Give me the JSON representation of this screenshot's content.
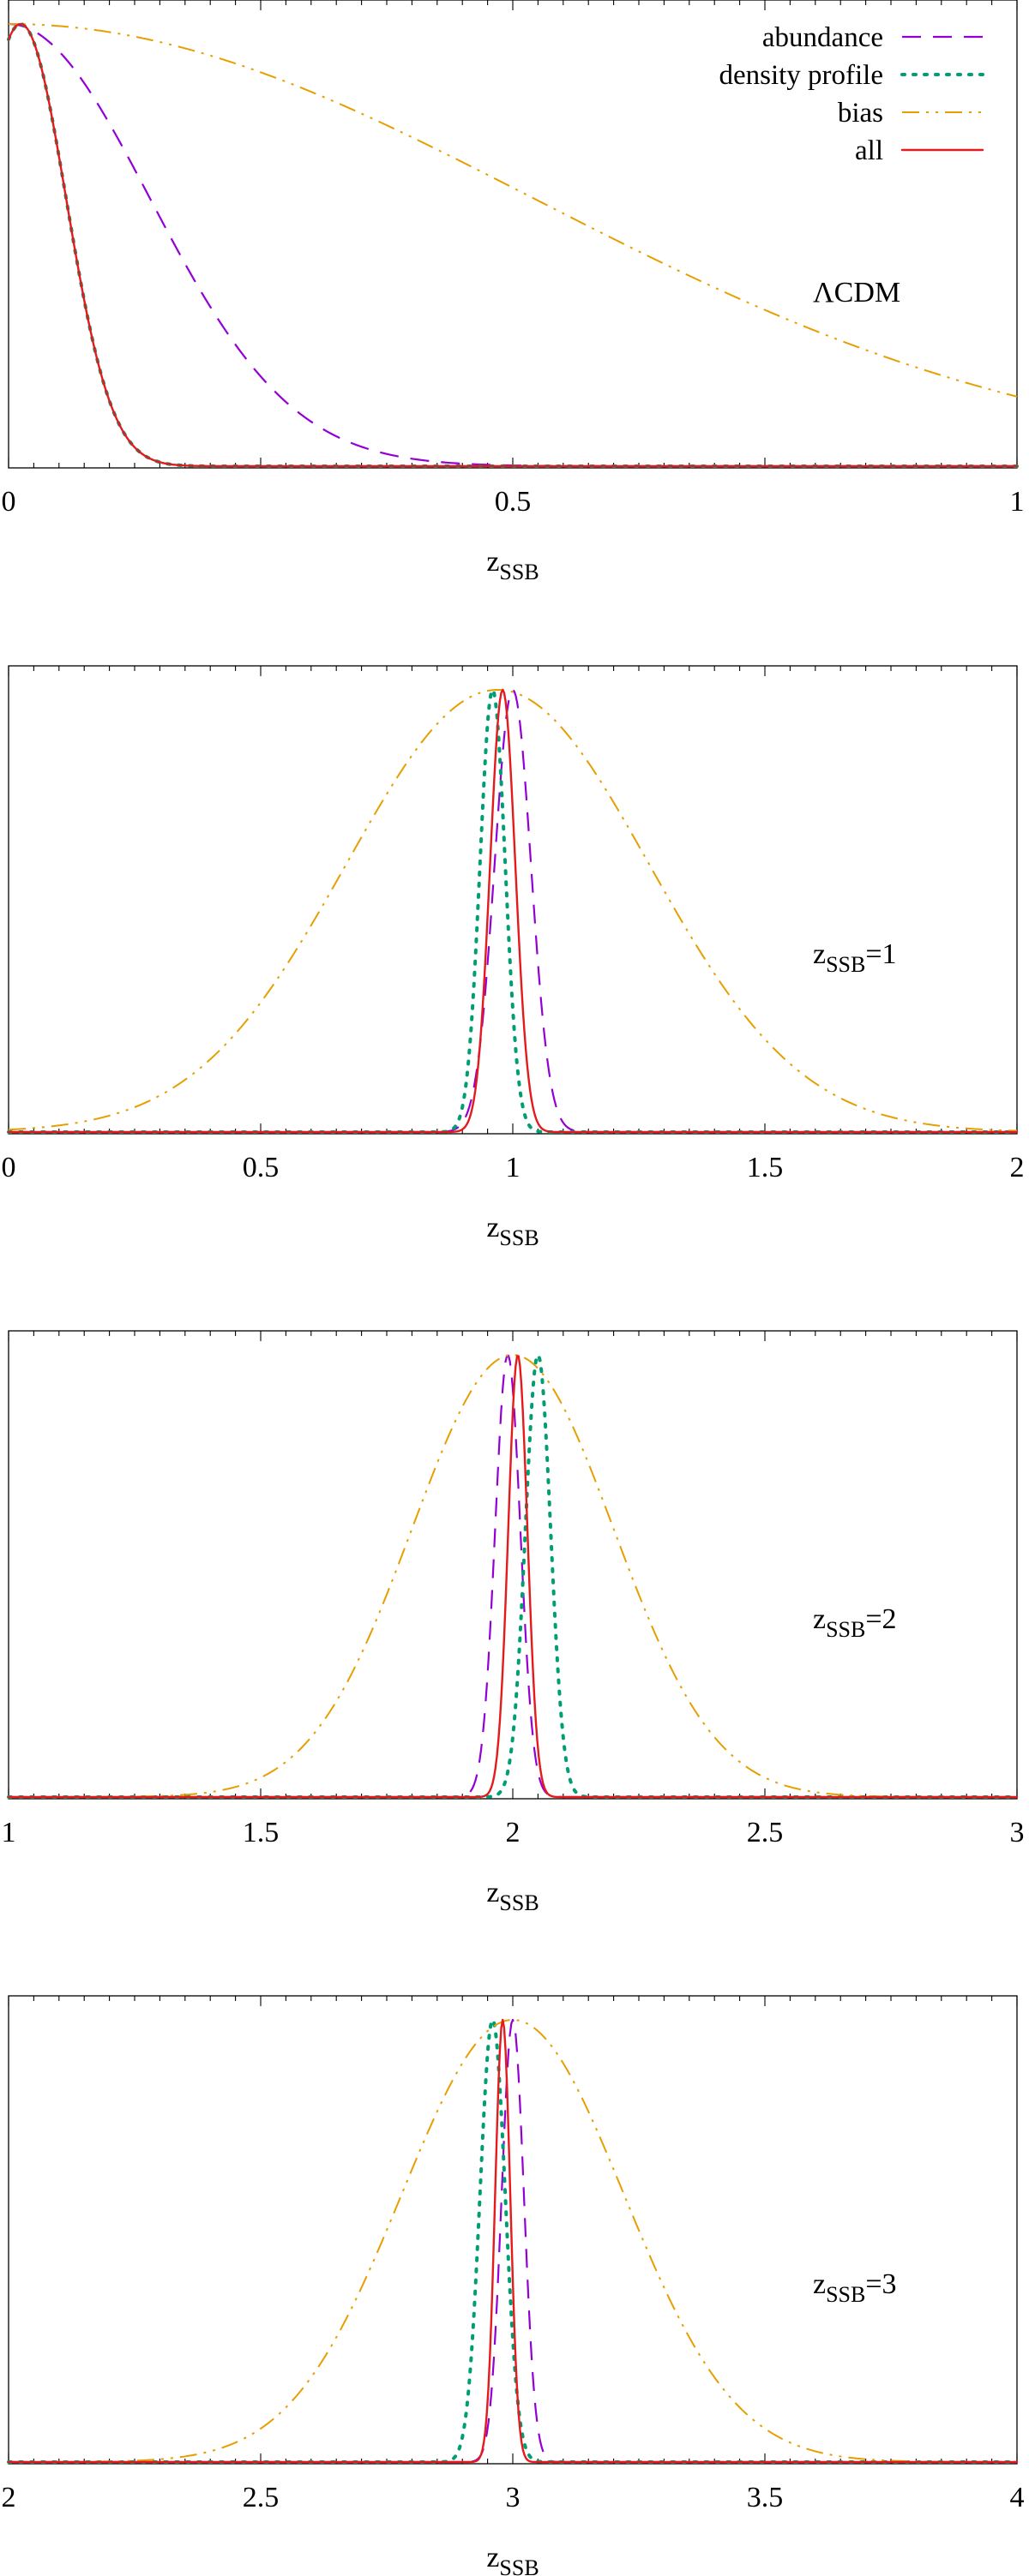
{
  "legend": [
    {
      "label": "abundance",
      "style": "dash",
      "color": "#9400d3"
    },
    {
      "label": "density profile",
      "style": "dot",
      "color": "#009e73"
    },
    {
      "label": "bias",
      "style": "dashdotdot",
      "color": "#e69f00"
    },
    {
      "label": "all",
      "style": "solid",
      "color": "#e41a1c"
    }
  ],
  "chart_data": [
    {
      "type": "line",
      "annotation": "ΛCDM",
      "xlabel_main": "z",
      "xlabel_sub": "SSB",
      "xlim": [
        0,
        1
      ],
      "ylim": [
        0,
        1
      ],
      "xticks": [
        "0",
        "0.5",
        "1"
      ],
      "curve_types": [
        {
          "name": "abundance",
          "kind": "half_gaussian",
          "center": 0.0,
          "sigma": 0.14
        },
        {
          "name": "density profile",
          "kind": "gaussian",
          "center": 0.012,
          "sigma": 0.045
        },
        {
          "name": "bias",
          "kind": "half_gaussian",
          "center": 0.0,
          "sigma": 0.52
        },
        {
          "name": "all",
          "kind": "gaussian",
          "center": 0.012,
          "sigma": 0.045
        }
      ]
    },
    {
      "type": "line",
      "annotation_main": "z",
      "annotation_sub": "SSB",
      "annotation_tail": "=1",
      "xlabel_main": "z",
      "xlabel_sub": "SSB",
      "xlim": [
        0,
        2
      ],
      "ylim": [
        0,
        1
      ],
      "xticks": [
        "0",
        "0.5",
        "1",
        "1.5",
        "2"
      ],
      "curve_types": [
        {
          "name": "abundance",
          "kind": "gaussian",
          "center": 1.0,
          "sigma": 0.036
        },
        {
          "name": "density profile",
          "kind": "gaussian",
          "center": 0.96,
          "sigma": 0.025
        },
        {
          "name": "bias",
          "kind": "gaussian",
          "center": 0.97,
          "sigma": 0.3
        },
        {
          "name": "all",
          "kind": "gaussian",
          "center": 0.98,
          "sigma": 0.025
        }
      ]
    },
    {
      "type": "line",
      "annotation_main": "z",
      "annotation_sub": "SSB",
      "annotation_tail": "=2",
      "xlabel_main": "z",
      "xlabel_sub": "SSB",
      "xlim": [
        1,
        3
      ],
      "ylim": [
        0,
        1
      ],
      "xticks": [
        "1",
        "1.5",
        "2",
        "2.5",
        "3"
      ],
      "curve_types": [
        {
          "name": "abundance",
          "kind": "gaussian",
          "center": 1.99,
          "sigma": 0.025
        },
        {
          "name": "density profile",
          "kind": "gaussian",
          "center": 2.05,
          "sigma": 0.025
        },
        {
          "name": "bias",
          "kind": "gaussian",
          "center": 2.0,
          "sigma": 0.2
        },
        {
          "name": "all",
          "kind": "gaussian",
          "center": 2.01,
          "sigma": 0.019
        }
      ]
    },
    {
      "type": "line",
      "annotation_main": "z",
      "annotation_sub": "SSB",
      "annotation_tail": "=3",
      "xlabel_main": "z",
      "xlabel_sub": "SSB",
      "xlim": [
        2,
        4
      ],
      "ylim": [
        0,
        1
      ],
      "xticks": [
        "2",
        "2.5",
        "3",
        "3.5",
        "4"
      ],
      "curve_types": [
        {
          "name": "abundance",
          "kind": "gaussian",
          "center": 3.0,
          "sigma": 0.022
        },
        {
          "name": "density profile",
          "kind": "gaussian",
          "center": 2.96,
          "sigma": 0.025
        },
        {
          "name": "bias",
          "kind": "gaussian",
          "center": 3.0,
          "sigma": 0.22
        },
        {
          "name": "all",
          "kind": "gaussian",
          "center": 2.98,
          "sigma": 0.015
        }
      ]
    }
  ]
}
